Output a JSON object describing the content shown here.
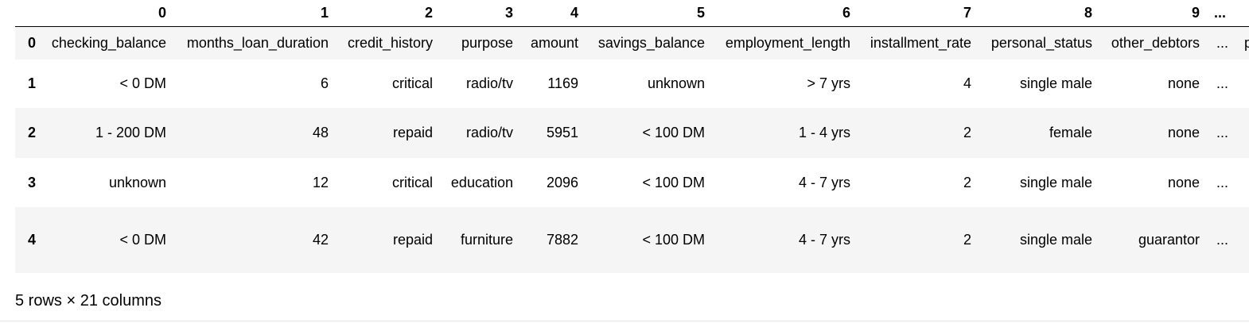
{
  "table": {
    "column_headers": [
      "0",
      "1",
      "2",
      "3",
      "4",
      "5",
      "6",
      "7",
      "8",
      "9",
      "...",
      ""
    ],
    "rows": [
      {
        "index": "0",
        "cells": [
          "checking_balance",
          "months_loan_duration",
          "credit_history",
          "purpose",
          "amount",
          "savings_balance",
          "employment_length",
          "installment_rate",
          "personal_status",
          "other_debtors",
          "...",
          "p"
        ]
      },
      {
        "index": "1",
        "cells": [
          "< 0 DM",
          "6",
          "critical",
          "radio/tv",
          "1169",
          "unknown",
          "> 7 yrs",
          "4",
          "single male",
          "none",
          "...",
          ""
        ]
      },
      {
        "index": "2",
        "cells": [
          "1 - 200 DM",
          "48",
          "repaid",
          "radio/tv",
          "5951",
          "< 100 DM",
          "1 - 4 yrs",
          "2",
          "female",
          "none",
          "...",
          ""
        ]
      },
      {
        "index": "3",
        "cells": [
          "unknown",
          "12",
          "critical",
          "education",
          "2096",
          "< 100 DM",
          "4 - 7 yrs",
          "2",
          "single male",
          "none",
          "...",
          ""
        ]
      },
      {
        "index": "4",
        "cells": [
          "< 0 DM",
          "42",
          "repaid",
          "furniture",
          "7882",
          "< 100 DM",
          "4 - 7 yrs",
          "2",
          "single male",
          "guarantor",
          "...",
          ""
        ]
      }
    ]
  },
  "footer": {
    "shape_text": "5 rows × 21 columns"
  }
}
